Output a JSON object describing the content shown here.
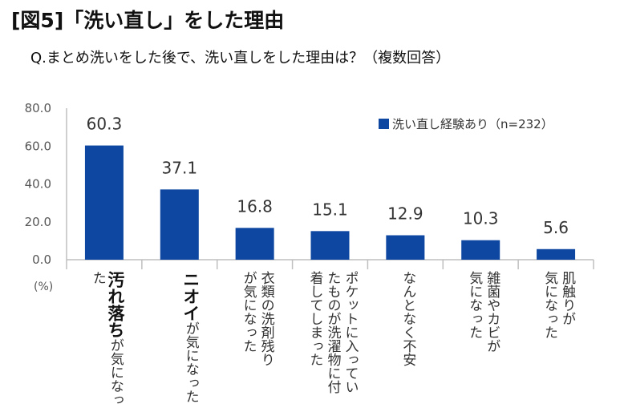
{
  "title": "[図5]「洗い直し」をした理由",
  "subtitle": "Q.まとめ洗いをした後で、洗い直しをした理由は？（複数回答）",
  "colors": {
    "bar": "#0d47a1",
    "axis": "#bfbfbf"
  },
  "chart_data": {
    "type": "bar",
    "unit_label": "(%)",
    "ylim": [
      0,
      80
    ],
    "yticks": [
      "80.0",
      "60.0",
      "40.0",
      "20.0",
      "0.0"
    ],
    "ytick_values": [
      80,
      60,
      40,
      20,
      0
    ],
    "legend": "洗い直し経験あり（n=232）",
    "values": [
      60.3,
      37.1,
      16.8,
      15.1,
      12.9,
      10.3,
      5.6
    ],
    "value_labels": [
      "60.3",
      "37.1",
      "16.8",
      "15.1",
      "12.9",
      "10.3",
      "5.6"
    ],
    "categories": [
      {
        "emphasis": "汚れ落ち",
        "rest": "が気になった",
        "lines": [
          "汚れ落ちが",
          "気になった"
        ]
      },
      {
        "emphasis": "ニオイ",
        "rest": "が気になった",
        "lines": [
          "ニオイが",
          "気になった"
        ]
      },
      {
        "emphasis": "",
        "rest": "衣類の洗剤残りが気になった",
        "lines": [
          "衣類の洗剤残り",
          "が気になった"
        ]
      },
      {
        "emphasis": "",
        "rest": "ポケットに入っていたものが洗濯物に付着してしまった",
        "lines": [
          "ポケットに入ってい",
          "たものが洗濯物に付",
          "着してしまった"
        ]
      },
      {
        "emphasis": "",
        "rest": "なんとなく不安",
        "lines": [
          "なんとなく不安"
        ]
      },
      {
        "emphasis": "",
        "rest": "雑菌やカビが気になった",
        "lines": [
          "雑菌やカビが",
          "気になった"
        ]
      },
      {
        "emphasis": "",
        "rest": "肌触りが気になった",
        "lines": [
          "肌触りが",
          "気になった"
        ]
      }
    ]
  }
}
